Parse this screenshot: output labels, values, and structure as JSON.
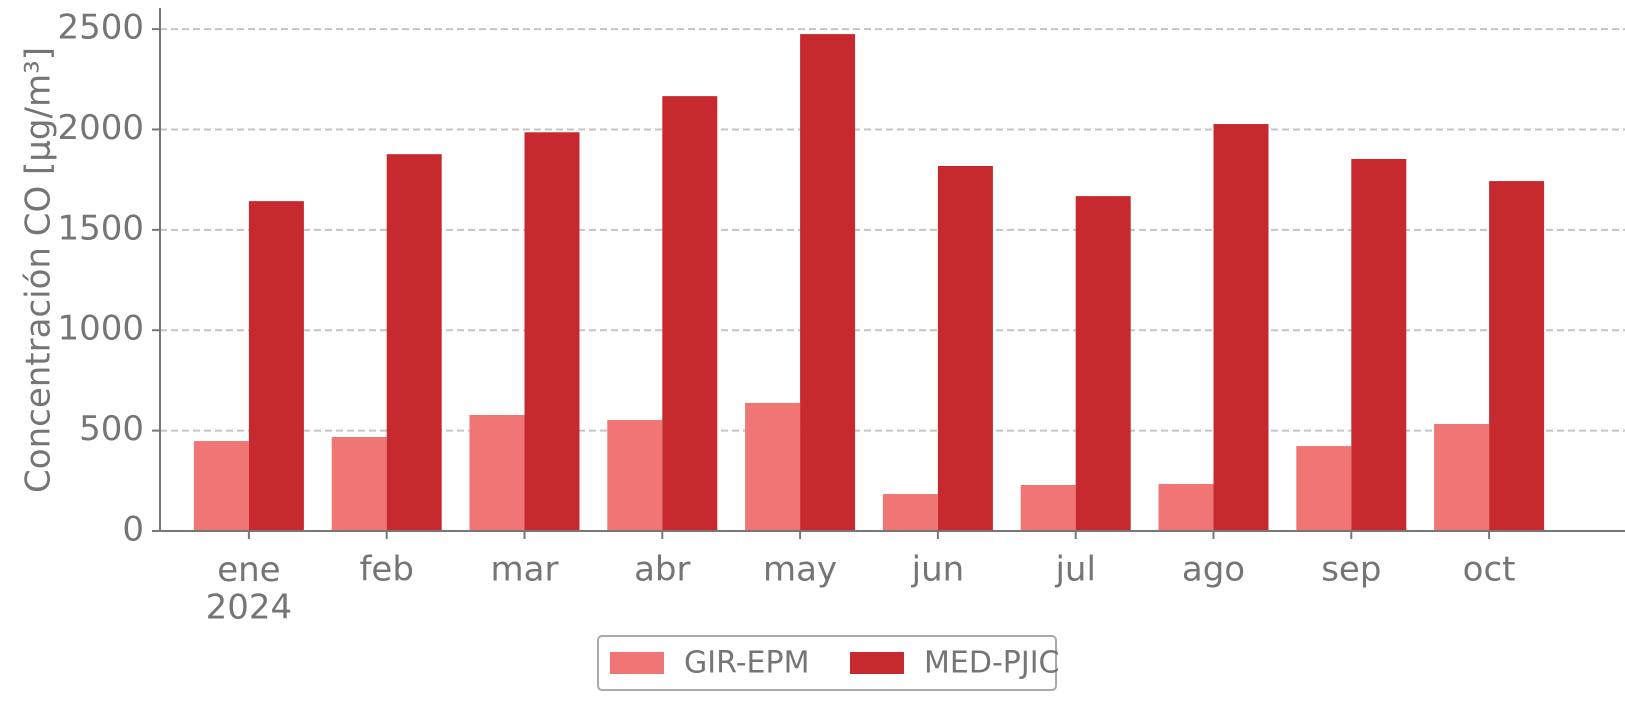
{
  "chart_data": {
    "type": "bar",
    "y_label": "Concentración CO [μg/m³]",
    "categories": [
      "ene\n2024",
      "feb",
      "mar",
      "abr",
      "may",
      "jun",
      "jul",
      "ago",
      "sep",
      "oct"
    ],
    "series": [
      {
        "name": "GIR-EPM",
        "color": "#f07575",
        "values": [
          448,
          468,
          578,
          553,
          638,
          184,
          229,
          234,
          423,
          533
        ]
      },
      {
        "name": "MED-PJIC",
        "color": "#c62a2e",
        "values": [
          1643,
          1877,
          1986,
          2166,
          2475,
          1818,
          1668,
          2027,
          1853,
          1743
        ]
      }
    ],
    "ylim": [
      0,
      2605
    ],
    "yticks": [
      0,
      500,
      1000,
      1500,
      2000,
      2500
    ],
    "grid": true,
    "legend": "bottom"
  }
}
